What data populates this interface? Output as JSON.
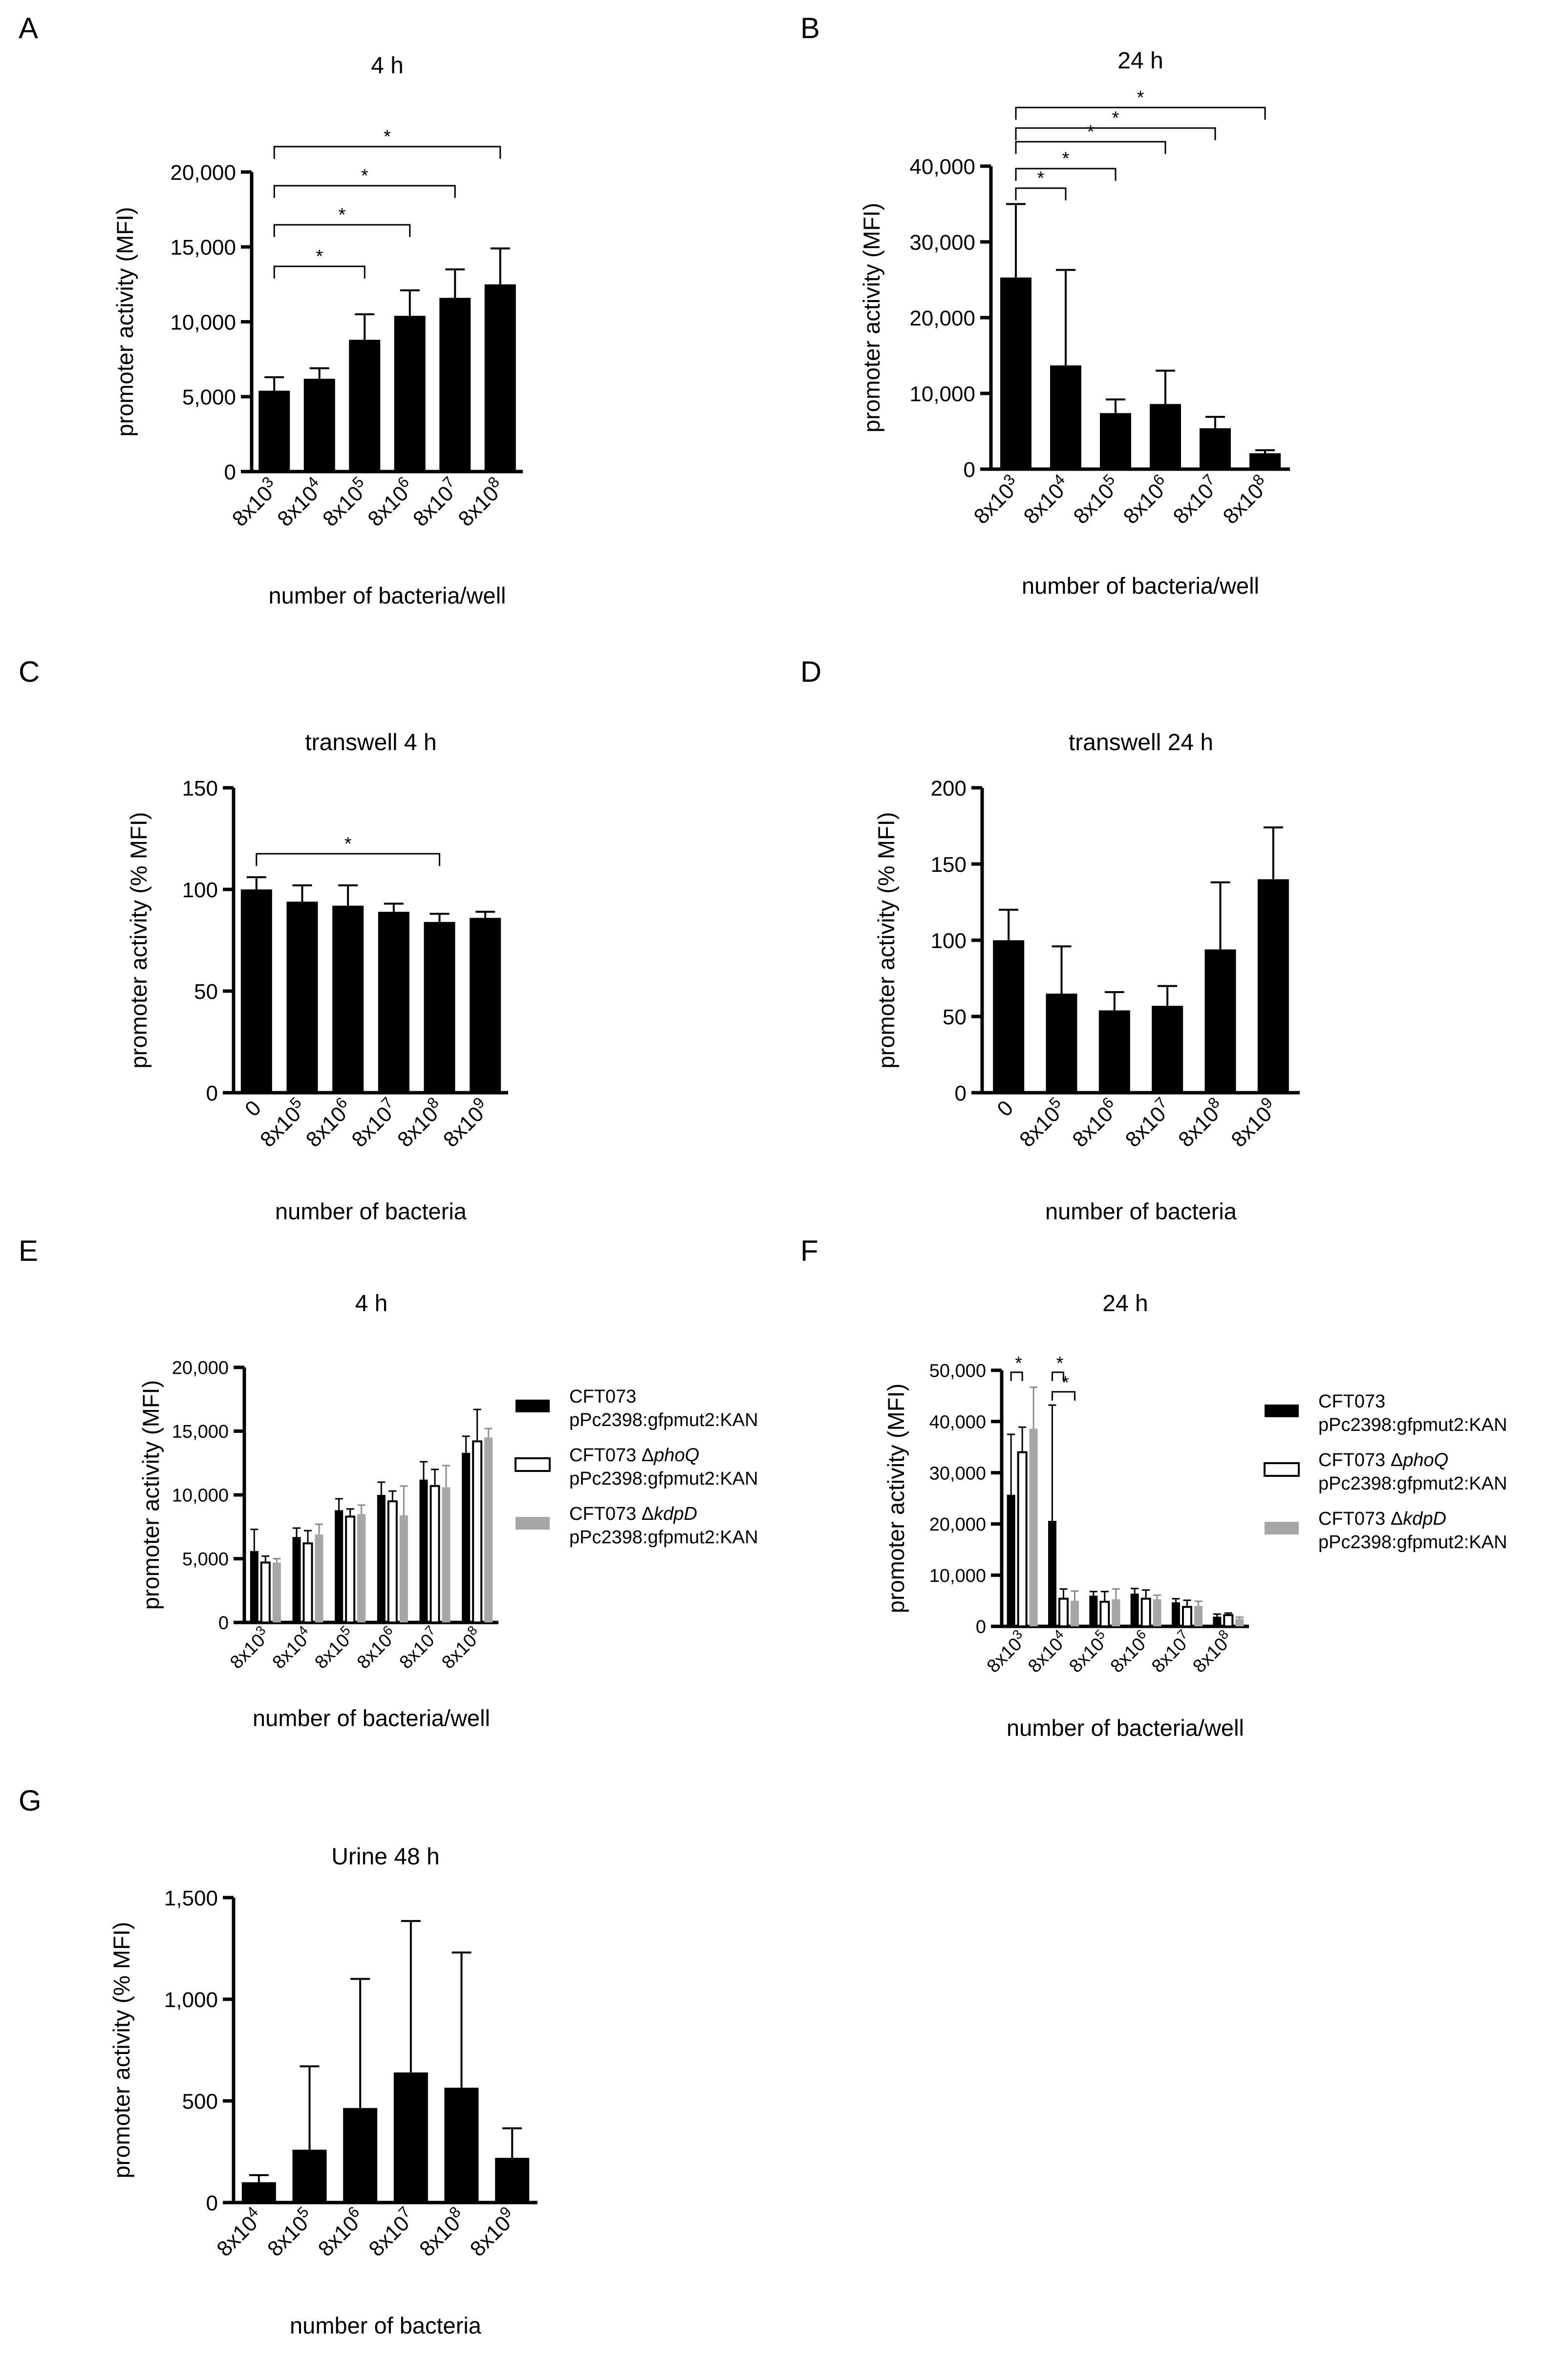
{
  "figure": {
    "background": "#ffffff",
    "ink": "#000000"
  },
  "chart_data": [
    {
      "id": "A",
      "type": "bar",
      "title": "4 h",
      "ylabel": "promoter activity (MFI)",
      "xlabel": "number of bacteria/well",
      "ylim": [
        0,
        20000
      ],
      "yticks": [
        0,
        5000,
        10000,
        15000,
        20000
      ],
      "ytick_labels": [
        "0",
        "5,000",
        "10,000",
        "15,000",
        "20,000"
      ],
      "categories": [
        {
          "base": "8x10",
          "exp": "3"
        },
        {
          "base": "8x10",
          "exp": "4"
        },
        {
          "base": "8x10",
          "exp": "5"
        },
        {
          "base": "8x10",
          "exp": "6"
        },
        {
          "base": "8x10",
          "exp": "7"
        },
        {
          "base": "8x10",
          "exp": "8"
        }
      ],
      "series": [
        {
          "name": "bars",
          "color": "#000000",
          "values": [
            5400,
            6200,
            8800,
            10400,
            11600,
            12500
          ],
          "errors": [
            900,
            700,
            1700,
            1700,
            1900,
            2400
          ]
        }
      ],
      "significance": [
        {
          "from": 0,
          "to": 2,
          "label": "*"
        },
        {
          "from": 0,
          "to": 3,
          "label": "*"
        },
        {
          "from": 0,
          "to": 4,
          "label": "*"
        },
        {
          "from": 0,
          "to": 5,
          "label": "*"
        }
      ]
    },
    {
      "id": "B",
      "type": "bar",
      "title": "24 h",
      "ylabel": "promoter activity (MFI)",
      "xlabel": "number of bacteria/well",
      "ylim": [
        0,
        40000
      ],
      "yticks": [
        0,
        10000,
        20000,
        30000,
        40000
      ],
      "ytick_labels": [
        "0",
        "10,000",
        "20,000",
        "30,000",
        "40,000"
      ],
      "categories": [
        {
          "base": "8x10",
          "exp": "3"
        },
        {
          "base": "8x10",
          "exp": "4"
        },
        {
          "base": "8x10",
          "exp": "5"
        },
        {
          "base": "8x10",
          "exp": "6"
        },
        {
          "base": "8x10",
          "exp": "7"
        },
        {
          "base": "8x10",
          "exp": "8"
        }
      ],
      "series": [
        {
          "name": "bars",
          "color": "#000000",
          "values": [
            25300,
            13700,
            7400,
            8600,
            5400,
            2100
          ],
          "errors": [
            9700,
            12600,
            1800,
            4400,
            1500,
            400
          ]
        }
      ],
      "significance": [
        {
          "from": 0,
          "to": 1,
          "label": "*"
        },
        {
          "from": 0,
          "to": 2,
          "label": "*"
        },
        {
          "from": 0,
          "to": 3,
          "label": "*"
        },
        {
          "from": 0,
          "to": 4,
          "label": "*"
        },
        {
          "from": 0,
          "to": 5,
          "label": "*"
        }
      ]
    },
    {
      "id": "C",
      "type": "bar",
      "title": "transwell 4 h",
      "ylabel": "promoter activity (% MFI)",
      "xlabel": "number of bacteria",
      "ylim": [
        0,
        150
      ],
      "yticks": [
        0,
        50,
        100,
        150
      ],
      "ytick_labels": [
        "0",
        "50",
        "100",
        "150"
      ],
      "categories": [
        {
          "base": "0",
          "exp": ""
        },
        {
          "base": "8x10",
          "exp": "5"
        },
        {
          "base": "8x10",
          "exp": "6"
        },
        {
          "base": "8x10",
          "exp": "7"
        },
        {
          "base": "8x10",
          "exp": "8"
        },
        {
          "base": "8x10",
          "exp": "9"
        }
      ],
      "series": [
        {
          "name": "bars",
          "color": "#000000",
          "values": [
            100,
            94,
            92,
            89,
            84,
            86
          ],
          "errors": [
            6,
            8,
            10,
            4,
            4,
            3
          ]
        }
      ],
      "significance": [
        {
          "from": 0,
          "to": 4,
          "label": "*"
        }
      ]
    },
    {
      "id": "D",
      "type": "bar",
      "title": "transwell 24 h",
      "ylabel": "promoter activity (% MFI)",
      "xlabel": "number of bacteria",
      "ylim": [
        0,
        200
      ],
      "yticks": [
        0,
        50,
        100,
        150,
        200
      ],
      "ytick_labels": [
        "0",
        "50",
        "100",
        "150",
        "200"
      ],
      "categories": [
        {
          "base": "0",
          "exp": ""
        },
        {
          "base": "8x10",
          "exp": "5"
        },
        {
          "base": "8x10",
          "exp": "6"
        },
        {
          "base": "8x10",
          "exp": "7"
        },
        {
          "base": "8x10",
          "exp": "8"
        },
        {
          "base": "8x10",
          "exp": "9"
        }
      ],
      "series": [
        {
          "name": "bars",
          "color": "#000000",
          "values": [
            100,
            65,
            54,
            57,
            94,
            140
          ],
          "errors": [
            20,
            31,
            12,
            13,
            44,
            34
          ]
        }
      ],
      "significance": []
    },
    {
      "id": "E",
      "type": "bar",
      "title": "4 h",
      "ylabel": "promoter activity (MFI)",
      "xlabel": "number of bacteria/well",
      "ylim": [
        0,
        20000
      ],
      "yticks": [
        0,
        5000,
        10000,
        15000,
        20000
      ],
      "ytick_labels": [
        "0",
        "5,000",
        "10,000",
        "15,000",
        "20,000"
      ],
      "categories": [
        {
          "base": "8x10",
          "exp": "3"
        },
        {
          "base": "8x10",
          "exp": "4"
        },
        {
          "base": "8x10",
          "exp": "5"
        },
        {
          "base": "8x10",
          "exp": "6"
        },
        {
          "base": "8x10",
          "exp": "7"
        },
        {
          "base": "8x10",
          "exp": "8"
        }
      ],
      "series": [
        {
          "name": "CFT073 pPc2398:gfpmut2:KAN",
          "legend_pre": "CFT073",
          "legend_italic": "",
          "legend_line2": "pPc2398:gfpmut2:KAN",
          "color": "#000000",
          "outline": false,
          "values": [
            5600,
            6700,
            8800,
            10000,
            11200,
            13300
          ],
          "errors": [
            1700,
            700,
            900,
            1000,
            1400,
            1300
          ]
        },
        {
          "name": "CFT073 ΔphoQ pPc2398:gfpmut2:KAN",
          "legend_pre": "CFT073 Δ",
          "legend_italic": "phoQ",
          "legend_line2": "pPc2398:gfpmut2:KAN",
          "color": "#ffffff",
          "outline": true,
          "values": [
            4700,
            6200,
            8300,
            9500,
            10700,
            14200
          ],
          "errors": [
            500,
            1000,
            600,
            800,
            1300,
            2500
          ]
        },
        {
          "name": "CFT073 ΔkdpD pPc2398:gfpmut2:KAN",
          "legend_pre": "CFT073 Δ",
          "legend_italic": "kdpD",
          "legend_line2": "pPc2398:gfpmut2:KAN",
          "color": "#a6a6a6",
          "outline": false,
          "values": [
            4700,
            6900,
            8500,
            8400,
            10600,
            14500
          ],
          "errors": [
            300,
            800,
            700,
            2300,
            1700,
            700
          ]
        }
      ],
      "legend_position": "right",
      "significance": []
    },
    {
      "id": "F",
      "type": "bar",
      "title": "24 h",
      "ylabel": "promoter activity (MFI)",
      "xlabel": "number of bacteria/well",
      "ylim": [
        0,
        50000
      ],
      "yticks": [
        0,
        10000,
        20000,
        30000,
        40000,
        50000
      ],
      "ytick_labels": [
        "0",
        "10,000",
        "20,000",
        "30,000",
        "40,000",
        "50,000"
      ],
      "categories": [
        {
          "base": "8x10",
          "exp": "3"
        },
        {
          "base": "8x10",
          "exp": "4"
        },
        {
          "base": "8x10",
          "exp": "5"
        },
        {
          "base": "8x10",
          "exp": "6"
        },
        {
          "base": "8x10",
          "exp": "7"
        },
        {
          "base": "8x10",
          "exp": "8"
        }
      ],
      "series": [
        {
          "name": "CFT073 pPc2398:gfpmut2:KAN",
          "legend_pre": "CFT073",
          "legend_italic": "",
          "legend_line2": "pPc2398:gfpmut2:KAN",
          "color": "#000000",
          "outline": false,
          "values": [
            25700,
            20600,
            6000,
            6400,
            4700,
            1900
          ],
          "errors": [
            11800,
            22600,
            800,
            1000,
            700,
            500
          ]
        },
        {
          "name": "CFT073 ΔphoQ pPc2398:gfpmut2:KAN",
          "legend_pre": "CFT073 Δ",
          "legend_italic": "phoQ",
          "legend_line2": "pPc2398:gfpmut2:KAN",
          "color": "#ffffff",
          "outline": true,
          "values": [
            34000,
            5400,
            4800,
            5400,
            3800,
            2200
          ],
          "errors": [
            4900,
            1900,
            2000,
            1700,
            1300,
            400
          ]
        },
        {
          "name": "CFT073 ΔkdpD pPc2398:gfpmut2:KAN",
          "legend_pre": "CFT073 Δ",
          "legend_italic": "kdpD",
          "legend_line2": "pPc2398:gfpmut2:KAN",
          "color": "#a6a6a6",
          "outline": false,
          "values": [
            38600,
            5000,
            5300,
            5300,
            4000,
            1500
          ],
          "errors": [
            8100,
            1900,
            2000,
            800,
            900,
            300
          ]
        }
      ],
      "legend_position": "right",
      "significance": [
        {
          "group": 0,
          "from_series": 0,
          "to_series": 1,
          "level": 0,
          "label": "*"
        },
        {
          "group": 1,
          "from_series": 0,
          "to_series": 1,
          "level": 0,
          "label": "*"
        },
        {
          "group": 1,
          "from_series": 0,
          "to_series": 2,
          "level": 1,
          "label": "*"
        }
      ]
    },
    {
      "id": "G",
      "type": "bar",
      "title": "Urine 48 h",
      "ylabel": "promoter activity (% MFI)",
      "xlabel": "number of bacteria",
      "ylim": [
        0,
        1500
      ],
      "yticks": [
        0,
        500,
        1000,
        1500
      ],
      "ytick_labels": [
        "0",
        "500",
        "1,000",
        "1,500"
      ],
      "categories": [
        {
          "base": "8x10",
          "exp": "4"
        },
        {
          "base": "8x10",
          "exp": "5"
        },
        {
          "base": "8x10",
          "exp": "6"
        },
        {
          "base": "8x10",
          "exp": "7"
        },
        {
          "base": "8x10",
          "exp": "8"
        },
        {
          "base": "8x10",
          "exp": "9"
        }
      ],
      "series": [
        {
          "name": "bars",
          "color": "#000000",
          "values": [
            100,
            260,
            465,
            640,
            565,
            220
          ],
          "errors": [
            35,
            410,
            635,
            745,
            665,
            145
          ]
        }
      ],
      "significance": []
    }
  ]
}
